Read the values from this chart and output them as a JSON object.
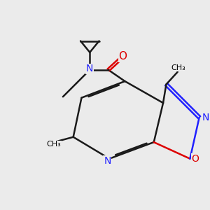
{
  "background_color": "#ebebeb",
  "bond_color": "#1a1a1a",
  "nitrogen_color": "#2020ff",
  "oxygen_color": "#dd0000",
  "line_width": 1.8,
  "font_size": 10,
  "xlim": [
    0,
    10
  ],
  "ylim": [
    0,
    10
  ]
}
